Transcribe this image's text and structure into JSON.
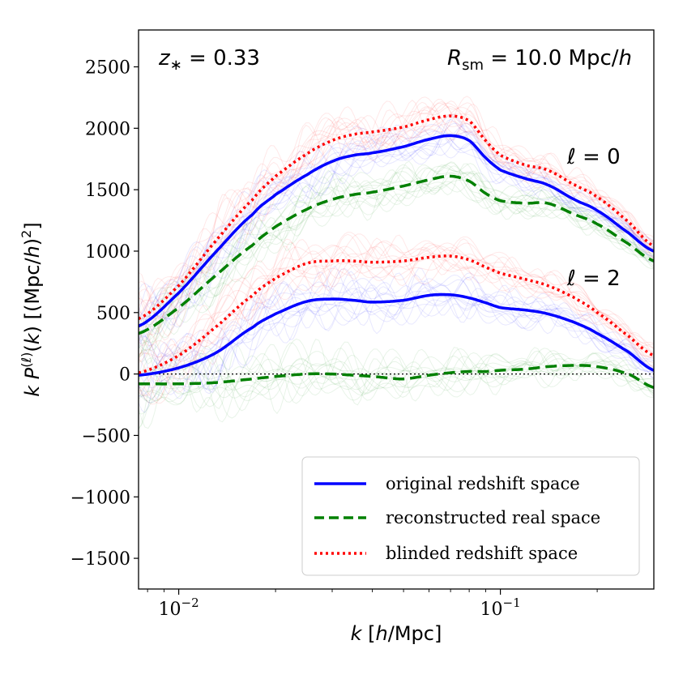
{
  "chart_data": {
    "type": "line",
    "x_scale": "log",
    "xlim": [
      0.0075,
      0.3
    ],
    "ylim": [
      -1750,
      2800
    ],
    "xlabel": "k [h/Mpc]",
    "ylabel": "k P^(ℓ)(k) [(Mpc/h)^2]",
    "x_tick_labels": [
      {
        "value": 0.01,
        "base": "10",
        "exp": "−2"
      },
      {
        "value": 0.1,
        "base": "10",
        "exp": "−1"
      }
    ],
    "y_ticks": [
      -1500,
      -1000,
      -500,
      0,
      500,
      1000,
      1500,
      2000,
      2500
    ],
    "y_tick_labels": [
      "−1500",
      "−1000",
      "−500",
      "0",
      "500",
      "1000",
      "1500",
      "2000",
      "2500"
    ],
    "annotations": {
      "redshift": "z* = 0.33",
      "smoothing": "R_sm = 10.0 Mpc/h",
      "monopole": "ℓ = 0",
      "quadrupole": "ℓ = 2"
    },
    "zero_line": true,
    "legend_position": "lower-right",
    "legend": [
      {
        "label": "original redshift space",
        "color": "#0000ff",
        "style": "solid"
      },
      {
        "label": "reconstructed real space",
        "color": "#008000",
        "style": "dashed"
      },
      {
        "label": "blinded redshift space",
        "color": "#ff0000",
        "style": "dotted"
      }
    ],
    "x": [
      0.0075,
      0.01,
      0.013,
      0.017,
      0.02,
      0.025,
      0.03,
      0.035,
      0.04,
      0.05,
      0.06,
      0.07,
      0.08,
      0.09,
      0.1,
      0.12,
      0.14,
      0.17,
      0.2,
      0.25,
      0.3
    ],
    "series": [
      {
        "name": "original redshift space ℓ=0",
        "color": "#0000ff",
        "style": "solid",
        "values": [
          390,
          660,
          990,
          1300,
          1460,
          1620,
          1730,
          1780,
          1800,
          1850,
          1910,
          1940,
          1900,
          1760,
          1660,
          1590,
          1540,
          1420,
          1330,
          1150,
          1000
        ]
      },
      {
        "name": "reconstructed real space ℓ=0",
        "color": "#008000",
        "style": "dashed",
        "values": [
          330,
          540,
          800,
          1050,
          1200,
          1340,
          1420,
          1460,
          1480,
          1530,
          1580,
          1610,
          1570,
          1470,
          1410,
          1390,
          1390,
          1300,
          1220,
          1060,
          920
        ]
      },
      {
        "name": "blinded redshift space ℓ=0",
        "color": "#ff0000",
        "style": "dotted",
        "values": [
          450,
          720,
          1080,
          1420,
          1610,
          1790,
          1900,
          1950,
          1970,
          2010,
          2070,
          2100,
          2060,
          1900,
          1780,
          1700,
          1660,
          1540,
          1440,
          1240,
          1040
        ]
      },
      {
        "name": "original redshift space ℓ=2",
        "color": "#0000ff",
        "style": "solid",
        "values": [
          -10,
          50,
          170,
          380,
          490,
          590,
          610,
          600,
          585,
          600,
          640,
          645,
          620,
          580,
          540,
          520,
          490,
          420,
          330,
          180,
          30
        ]
      },
      {
        "name": "reconstructed real space ℓ=2",
        "color": "#008000",
        "style": "dashed",
        "values": [
          -80,
          -80,
          -70,
          -40,
          -20,
          0,
          0,
          -10,
          -20,
          -40,
          -10,
          10,
          20,
          20,
          30,
          40,
          60,
          70,
          60,
          0,
          -110
        ]
      },
      {
        "name": "blinded redshift space ℓ=2",
        "color": "#ff0000",
        "style": "dotted",
        "values": [
          10,
          150,
          380,
          640,
          780,
          900,
          920,
          920,
          910,
          920,
          950,
          960,
          930,
          870,
          820,
          770,
          720,
          620,
          500,
          310,
          150
        ]
      }
    ]
  }
}
